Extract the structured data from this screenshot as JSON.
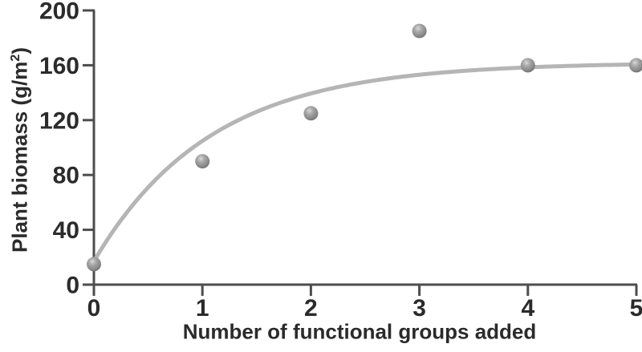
{
  "chart_data": {
    "type": "scatter",
    "title": "",
    "xlabel": "Number of functional groups added",
    "ylabel": "Plant biomass (g/m²)",
    "ylabel_parts": {
      "prefix": "Plant biomass (g/m",
      "superscript": "2",
      "suffix": ")"
    },
    "x": [
      0,
      1,
      2,
      3,
      4,
      5
    ],
    "y": [
      15,
      90,
      125,
      185,
      160,
      160
    ],
    "x_ticks": [
      "0",
      "1",
      "2",
      "3",
      "4",
      "5"
    ],
    "y_ticks": [
      "0",
      "40",
      "80",
      "120",
      "160",
      "200"
    ],
    "x_tick_values": [
      0,
      1,
      2,
      3,
      4,
      5
    ],
    "y_tick_values": [
      0,
      40,
      80,
      120,
      160,
      200
    ],
    "xlim": [
      0,
      5
    ],
    "ylim": [
      0,
      200
    ],
    "grid": false,
    "legend": null,
    "marker_style": "gray-sphere",
    "curve": {
      "type": "saturating-exponential-fit",
      "formula": "y = 162 - 145 * exp(-0.93 * x)",
      "A": 162,
      "B": 145,
      "k": 0.93,
      "x_start": 0,
      "x_end": 5,
      "plateau": 160
    },
    "colors": {
      "background": "#ffffff",
      "axis": "#4d4d4d",
      "text": "#2b2b2b",
      "curve": "#b5b5b5",
      "point_highlight": "#d9d9d9",
      "point_mid": "#a8a8a8",
      "point_dark": "#8a8a8a",
      "point_rim": "#6f6f6f"
    }
  }
}
